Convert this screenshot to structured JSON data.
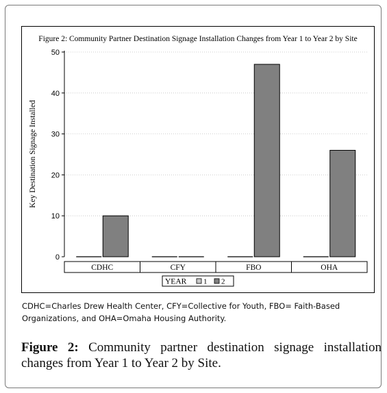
{
  "figure": {
    "label": "Figure 2:",
    "caption": "Community partner destination signage installation changes from Year 1 to Year 2 by Site."
  },
  "note": "CDHC=Charles Drew Health Center, CFY=Collective for Youth, FBO= Faith-Based Organizations, and OHA=Omaha Housing Authority.",
  "chart_data": {
    "type": "bar",
    "title": "Figure 2: Community Partner Destination Signage Installation Changes from Year 1 to Year 2 by Site",
    "xlabel": "",
    "ylabel": "Key Destination Signage Installed",
    "categories": [
      "CDHC",
      "CFY",
      "FBO",
      "OHA"
    ],
    "series": [
      {
        "name": "1",
        "values": [
          0,
          0,
          0,
          0
        ]
      },
      {
        "name": "2",
        "values": [
          10,
          0,
          47,
          26
        ]
      }
    ],
    "ylim": [
      0,
      50
    ],
    "yticks": [
      0,
      10,
      20,
      30,
      40,
      50
    ],
    "grid": true,
    "legend": {
      "title": "YEAR",
      "placement": "bottom"
    },
    "colors": {
      "bar": "#808080",
      "bar_stroke": "#000000",
      "grid": "#bfbfbf"
    }
  }
}
